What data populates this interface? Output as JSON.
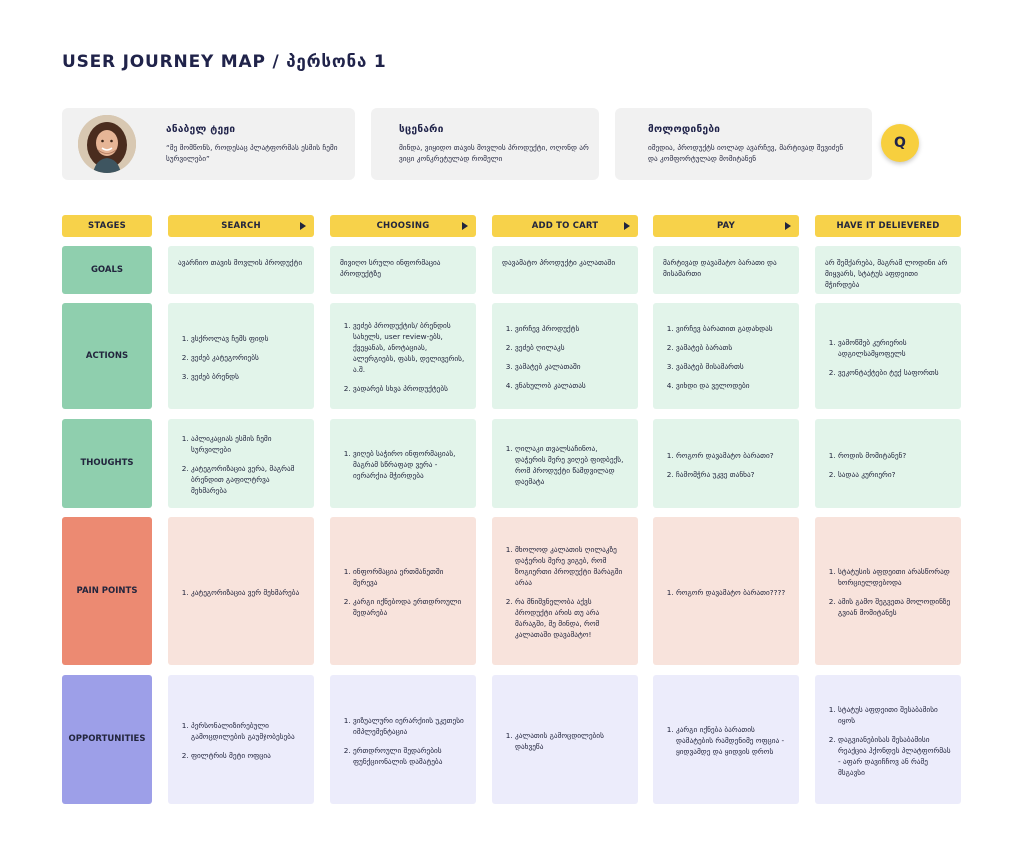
{
  "title": "USER JOURNEY MAP / პერსონა 1",
  "persona": {
    "name": "ანაბელ ტეჟი",
    "quote": "“მე მომწონს, როდესაც პლატფორმას ესმის ჩემი სურვილები”"
  },
  "scenario": {
    "heading": "სცენარი",
    "text": "მინდა, ვიყიდო თავის მოვლის პროდუქტი, ოღონდ არ ვიცი კონკრეტულად რომელი"
  },
  "expectations": {
    "heading": "მოლოდინები",
    "text": "იმედია, პროდუქტს იოლად ავარჩევ, მარტივად შევიძენ და კომფორტულად მომიტანენ"
  },
  "q_button": "Q",
  "colors": {
    "stage": "#f7d24a",
    "goals": "#8fcfae",
    "goals_bg": "#e2f4ea",
    "pain": "#ec8a72",
    "pain_bg": "#f8e3dc",
    "opportunities": "#9d9fe8",
    "opportunities_bg": "#ececfb"
  },
  "stages": {
    "label": "STAGES",
    "items": [
      "SEARCH",
      "CHOOSING",
      "ADD TO CART",
      "PAY",
      "HAVE IT DELIEVERED"
    ]
  },
  "rows": {
    "goals": {
      "label": "GOALS",
      "cells": [
        "ავარჩიო თავის მოვლის პროდუქტი",
        "მივიღო სრული ინფორმაცია პროდუქტზე",
        "დავამატო პროდუქტი კალათაში",
        "მარტივად დავამატო ბარათი და მისამართი",
        "არ შემქარება, მაგრამ ლოდინი არ მიყვარს, სტატუს აფდეითი მჭირდება"
      ]
    },
    "actions": {
      "label": "ACTIONS",
      "cells": [
        [
          "ვსქროლავ ჩემს ფიდს",
          "ვეძებ კატეგორიებს",
          "ვეძებ ბრენდს"
        ],
        [
          "ვეძებ პროდუქტის/ ბრენდის სახელს, user review-ებს, ქვეყანას, ანოტაციას, ალერგიებს, ფასს, დელივერის, ა.შ.",
          "ვადარებ სხვა პროდუქტებს"
        ],
        [
          "ვირჩევ პროდუქტს",
          "ვეძებ ღილაკს",
          "ვამატებ კალათაში",
          "ვნახულობ კალათას"
        ],
        [
          "ვირჩევ ბარათით გადახდას",
          "ვამატებ ბარათს",
          "ვამატებ მისამართს",
          "ვიხდი და ველოდები"
        ],
        [
          "ვამოწმებ კურიერის ადგილსამყოფელს",
          "ვეკონტაქტები ტექ საფორთს"
        ]
      ]
    },
    "thoughts": {
      "label": "THOUGHTS",
      "cells": [
        [
          "აპლიკაციას ესმის ჩემი სურვილები",
          "კატეგორიზაცია ვერა, მაგრამ ბრენდით გაფილტრვა მეხმარება"
        ],
        [
          "ვიღებ საჭირო ინფორმაციას, მაგრამ სწრაფად ვერა - იერარქია მჭირდება"
        ],
        [
          "ღილაკი თვალსაჩინოა, დაჭერის მერე ვიღებ ფიდბექს, რომ პროდუქტი წამდვილად დაემატა"
        ],
        [
          "როგორ დავამატო ბარათი?",
          "ჩამომჭრა უკვე თანხა?"
        ],
        [
          "როდის მომიტანენ?",
          "სადაა კურიერი?"
        ]
      ]
    },
    "pain_points": {
      "label": "PAIN POINTS",
      "cells": [
        [
          "კატეგორიზაცია ვერ მეხმარება"
        ],
        [
          "ინფორმაცია ერთმანეთში მერევა",
          "კარგი იქნებოდა ერთდროული შედარება"
        ],
        [
          "მხოლოდ კალათის ღილაკზე დაჭერის მერე ვიგებ, რომ ზოგიერთი პროდუქტი მარაგში არაა",
          "რა მნიშვნელობა აქვს პროდუქტი არის თუ არა მარაგში, მე მინდა, რომ კალათაში დავამატო!"
        ],
        [
          "როგორ დავამატო ბარათი????"
        ],
        [
          "სტატუსის აფდეითი არასწორად ხორციელდებოდა",
          "ამის გამო შეგვეთა მოლოდინზე გვიან მომიტანეს"
        ]
      ]
    },
    "opportunities": {
      "label": "OPPORTUNITIES",
      "cells": [
        [
          "პერსონალიზირებული გამოცდილების გაუმჯობესება",
          "ფილტრის მეტი ოფცია"
        ],
        [
          "ვიზუალური იერარქიის უკეთესი იმპლემენტაცია",
          "ერთდროული შედარების ფუნქციონალის დამატება"
        ],
        [
          "კალათის გამოცდილების დახვეწა"
        ],
        [
          "კარგი იქნება ბარათის დამატების რამდენიმე ოფცია - ყიდვამდე და ყიდვის დროს"
        ],
        [
          "სტატუს აფდეითი შესაბამისი იყოს",
          "დაგვიანებისას შესაბამისი რეაქცია ჰქონდეს პლატფორმას - აფარ დავიჩჩოვ ან რამე მსგავსი"
        ]
      ]
    }
  }
}
